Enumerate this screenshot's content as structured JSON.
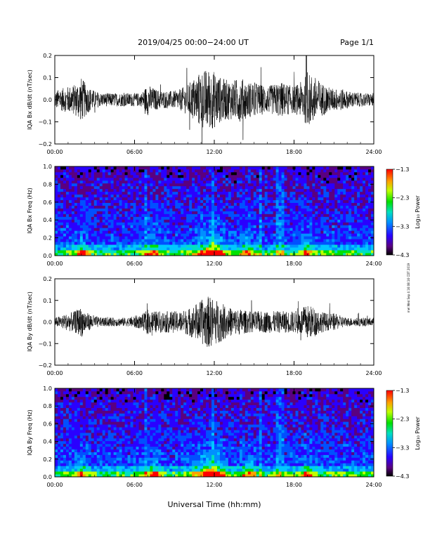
{
  "header": {
    "title": "2019/04/25  00:00−24:00 UT",
    "page": "Page 1/1"
  },
  "footer": {
    "xlabel": "Universal Time (hh:mm)",
    "side_note": "mel Wed Sep 4 16:08:16 CDT 2019"
  },
  "colorbar": {
    "label": "Log₁₀ Power",
    "ticks": [
      "−1.3",
      "−2.3",
      "−3.3",
      "−4.3"
    ],
    "tick_values": [
      -1.3,
      -2.3,
      -3.3,
      -4.3
    ],
    "range": [
      -4.3,
      -1.3
    ]
  },
  "chart_data": [
    {
      "type": "line",
      "ylabel": "IQA Bx dB/dt (nT/sec)",
      "xlim": [
        0,
        24
      ],
      "ylim": [
        -0.2,
        0.2
      ],
      "x_ticks": [
        "00:00",
        "06:00",
        "12:00",
        "18:00",
        "24:00"
      ],
      "y_ticks": [
        "−0.2",
        "−0.1",
        "0.0",
        "0.1",
        "0.2"
      ],
      "y_tick_values": [
        -0.2,
        -0.1,
        0.0,
        0.1,
        0.2
      ],
      "envelope_hours": [
        0,
        0.5,
        1,
        1.5,
        2,
        2.5,
        3,
        3.5,
        4,
        4.5,
        5,
        5.5,
        6,
        6.5,
        7,
        7.5,
        8,
        8.5,
        9,
        9.5,
        10,
        10.5,
        11,
        11.5,
        12,
        12.5,
        13,
        13.5,
        14,
        14.5,
        15,
        15.5,
        16,
        16.5,
        17,
        17.5,
        18,
        18.5,
        19,
        19.5,
        20,
        20.5,
        21,
        21.5,
        22,
        22.5,
        23,
        23.5,
        24
      ],
      "envelope_amplitude": [
        0.04,
        0.05,
        0.06,
        0.07,
        0.1,
        0.06,
        0.04,
        0.03,
        0.03,
        0.03,
        0.03,
        0.03,
        0.03,
        0.03,
        0.07,
        0.05,
        0.04,
        0.04,
        0.04,
        0.05,
        0.07,
        0.1,
        0.13,
        0.14,
        0.13,
        0.1,
        0.09,
        0.09,
        0.1,
        0.08,
        0.08,
        0.07,
        0.06,
        0.07,
        0.08,
        0.07,
        0.06,
        0.08,
        0.12,
        0.11,
        0.08,
        0.06,
        0.05,
        0.05,
        0.04,
        0.035,
        0.03,
        0.03,
        0.03
      ]
    },
    {
      "type": "heatmap",
      "ylabel": "IQA Bx Freq (Hz)",
      "xlim": [
        0,
        24
      ],
      "ylim": [
        0,
        1.0
      ],
      "x_ticks": [
        "00:00",
        "06:00",
        "12:00",
        "18:00",
        "24:00"
      ],
      "y_ticks": [
        "0.0",
        "0.2",
        "0.4",
        "0.6",
        "0.8",
        "1.0"
      ],
      "y_tick_values": [
        0.0,
        0.2,
        0.4,
        0.6,
        0.8,
        1.0
      ],
      "log10_power_range": [
        -4.3,
        -1.3
      ]
    },
    {
      "type": "line",
      "ylabel": "IQA By dB/dt (nT/sec)",
      "xlim": [
        0,
        24
      ],
      "ylim": [
        -0.2,
        0.2
      ],
      "x_ticks": [
        "00:00",
        "06:00",
        "12:00",
        "18:00",
        "24:00"
      ],
      "y_ticks": [
        "−0.2",
        "−0.1",
        "0.0",
        "0.1",
        "0.2"
      ],
      "y_tick_values": [
        -0.2,
        -0.1,
        0.0,
        0.1,
        0.2
      ],
      "envelope_hours": [
        0,
        0.5,
        1,
        1.5,
        2,
        2.5,
        3,
        3.5,
        4,
        4.5,
        5,
        5.5,
        6,
        6.5,
        7,
        7.5,
        8,
        8.5,
        9,
        9.5,
        10,
        10.5,
        11,
        11.5,
        12,
        12.5,
        13,
        13.5,
        14,
        14.5,
        15,
        15.5,
        16,
        16.5,
        17,
        17.5,
        18,
        18.5,
        19,
        19.5,
        20,
        20.5,
        21,
        21.5,
        22,
        22.5,
        23,
        23.5,
        24
      ],
      "envelope_amplitude": [
        0.02,
        0.03,
        0.04,
        0.05,
        0.07,
        0.04,
        0.03,
        0.02,
        0.02,
        0.02,
        0.02,
        0.02,
        0.03,
        0.03,
        0.06,
        0.05,
        0.05,
        0.05,
        0.05,
        0.05,
        0.06,
        0.08,
        0.1,
        0.12,
        0.11,
        0.09,
        0.07,
        0.06,
        0.06,
        0.05,
        0.05,
        0.05,
        0.05,
        0.05,
        0.05,
        0.05,
        0.05,
        0.06,
        0.08,
        0.07,
        0.05,
        0.04,
        0.04,
        0.03,
        0.02,
        0.02,
        0.02,
        0.02,
        0.02
      ]
    },
    {
      "type": "heatmap",
      "ylabel": "IQA By Freq (Hz)",
      "xlim": [
        0,
        24
      ],
      "ylim": [
        0,
        1.0
      ],
      "x_ticks": [
        "00:00",
        "06:00",
        "12:00",
        "18:00",
        "24:00"
      ],
      "y_ticks": [
        "0.0",
        "0.2",
        "0.4",
        "0.6",
        "0.8",
        "1.0"
      ],
      "y_tick_values": [
        0.0,
        0.2,
        0.4,
        0.6,
        0.8,
        1.0
      ],
      "log10_power_range": [
        -4.3,
        -1.3
      ]
    }
  ]
}
